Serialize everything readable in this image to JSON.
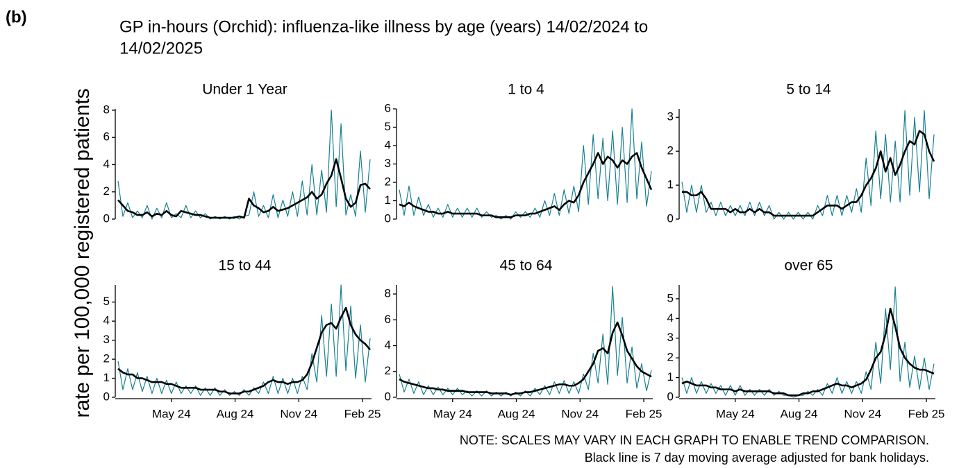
{
  "figure": {
    "label": "(b)",
    "title_lines": [
      "GP in-hours (Orchid): influenza-like illness by age (years) 14/02/2024 to",
      "14/02/2025"
    ],
    "y_axis_label": "rate per 100,000 registered patients",
    "notes": [
      "NOTE: SCALES MAY VARY IN EACH GRAPH TO ENABLE TREND COMPARISON.",
      "Black line is 7 day moving average adjusted for bank holidays."
    ]
  },
  "chart_data": [
    {
      "type": "line",
      "title": "Under 1 Year",
      "xlim": [
        0,
        366
      ],
      "ylim": [
        0,
        8.1
      ],
      "yticks": [
        0,
        2,
        4,
        6,
        8
      ],
      "x": [
        0,
        7,
        14,
        21,
        28,
        35,
        42,
        49,
        56,
        63,
        70,
        77,
        84,
        91,
        98,
        105,
        112,
        119,
        126,
        133,
        140,
        147,
        154,
        161,
        168,
        175,
        182,
        189,
        196,
        203,
        210,
        217,
        224,
        231,
        238,
        245,
        252,
        259,
        266,
        273,
        280,
        287,
        294,
        301,
        308,
        315,
        322,
        329,
        336,
        343,
        350,
        357,
        364
      ],
      "series": [
        {
          "color": "#157f91",
          "width": 1.2,
          "values": [
            2.8,
            0.2,
            1.2,
            0.1,
            0.6,
            0.1,
            1.0,
            0,
            0.8,
            0.1,
            1.2,
            0.1,
            0.4,
            0.1,
            1.0,
            0.1,
            0.6,
            0.1,
            0.4,
            0,
            0.2,
            0,
            0.2,
            0,
            0.2,
            0,
            0.2,
            0.3,
            2.0,
            0.2,
            1.0,
            0.1,
            1.8,
            0.1,
            1.4,
            0.2,
            2.0,
            0.2,
            2.8,
            0.3,
            4.0,
            0.3,
            3.6,
            0.5,
            8.0,
            0.9,
            7.0,
            0.3,
            1.8,
            0.2,
            5.0,
            0.5,
            4.4
          ]
        },
        {
          "color": "#000000",
          "width": 2.6,
          "values": [
            1.4,
            1.0,
            0.6,
            0.5,
            0.3,
            0.3,
            0.5,
            0.2,
            0.4,
            0.3,
            0.6,
            0.3,
            0.2,
            0.6,
            0.5,
            0.4,
            0.3,
            0.3,
            0.2,
            0.1,
            0.1,
            0.1,
            0.1,
            0.1,
            0.1,
            0.2,
            0.1,
            1.5,
            1.0,
            0.8,
            0.5,
            0.6,
            0.9,
            0.6,
            0.7,
            0.8,
            1.0,
            1.2,
            1.4,
            1.6,
            2.0,
            1.5,
            1.8,
            2.6,
            3.2,
            4.4,
            3.0,
            1.5,
            0.9,
            1.2,
            2.5,
            2.6,
            2.2
          ]
        }
      ]
    },
    {
      "type": "line",
      "title": "1 to 4",
      "xlim": [
        0,
        366
      ],
      "ylim": [
        0,
        6
      ],
      "yticks": [
        0,
        1,
        2,
        3,
        4,
        5,
        6
      ],
      "x": [
        0,
        7,
        14,
        21,
        28,
        35,
        42,
        49,
        56,
        63,
        70,
        77,
        84,
        91,
        98,
        105,
        112,
        119,
        126,
        133,
        140,
        147,
        154,
        161,
        168,
        175,
        182,
        189,
        196,
        203,
        210,
        217,
        224,
        231,
        238,
        245,
        252,
        259,
        266,
        273,
        280,
        287,
        294,
        301,
        308,
        315,
        322,
        329,
        336,
        343,
        350,
        357,
        364
      ],
      "series": [
        {
          "color": "#157f91",
          "width": 1.2,
          "values": [
            1.6,
            0.2,
            1.8,
            0.2,
            1.2,
            0.2,
            0.8,
            0.1,
            0.6,
            0.1,
            0.8,
            0.1,
            0.6,
            0.1,
            0.6,
            0.1,
            0.6,
            0.1,
            0.4,
            0.1,
            0.2,
            0,
            0.2,
            0,
            0.4,
            0.1,
            0.4,
            0.1,
            0.6,
            0.1,
            1.0,
            0.2,
            1.4,
            0.2,
            1.6,
            0.3,
            1.8,
            0.4,
            4.0,
            0.8,
            4.6,
            1.1,
            4.4,
            1.0,
            4.8,
            0.8,
            5.0,
            0.9,
            6.0,
            1.1,
            4.2,
            0.7,
            2.6
          ]
        },
        {
          "color": "#000000",
          "width": 2.6,
          "values": [
            0.8,
            0.7,
            0.9,
            0.7,
            0.6,
            0.5,
            0.4,
            0.4,
            0.3,
            0.3,
            0.4,
            0.3,
            0.3,
            0.3,
            0.3,
            0.3,
            0.3,
            0.2,
            0.2,
            0.2,
            0.1,
            0.1,
            0.1,
            0.1,
            0.2,
            0.2,
            0.2,
            0.3,
            0.3,
            0.4,
            0.5,
            0.6,
            0.7,
            0.5,
            0.8,
            1.0,
            0.9,
            1.3,
            2.0,
            2.5,
            3.0,
            3.6,
            3.0,
            3.4,
            3.2,
            2.8,
            3.2,
            3.0,
            3.4,
            3.6,
            2.8,
            2.2,
            1.6
          ]
        }
      ]
    },
    {
      "type": "line",
      "title": "5 to 14",
      "xlim": [
        0,
        366
      ],
      "ylim": [
        0,
        3.25
      ],
      "yticks": [
        0,
        1,
        2,
        3
      ],
      "x": [
        0,
        7,
        14,
        21,
        28,
        35,
        42,
        49,
        56,
        63,
        70,
        77,
        84,
        91,
        98,
        105,
        112,
        119,
        126,
        133,
        140,
        147,
        154,
        161,
        168,
        175,
        182,
        189,
        196,
        203,
        210,
        217,
        224,
        231,
        238,
        245,
        252,
        259,
        266,
        273,
        280,
        287,
        294,
        301,
        308,
        315,
        322,
        329,
        336,
        343,
        350,
        357,
        364
      ],
      "series": [
        {
          "color": "#157f91",
          "width": 1.2,
          "values": [
            1.1,
            0.2,
            1.0,
            0.2,
            1.0,
            0.2,
            0.5,
            0.1,
            0.5,
            0.1,
            0.4,
            0.1,
            0.4,
            0.1,
            0.5,
            0.1,
            0.5,
            0.1,
            0.4,
            0,
            0.2,
            0,
            0.2,
            0,
            0.2,
            0,
            0.2,
            0,
            0.4,
            0.1,
            0.7,
            0.1,
            0.7,
            0.1,
            0.7,
            0.2,
            0.9,
            0.2,
            1.8,
            0.4,
            2.6,
            0.6,
            2.5,
            0.5,
            2.3,
            0.5,
            3.2,
            0.7,
            3.0,
            0.8,
            3.2,
            0.6,
            2.5
          ]
        },
        {
          "color": "#000000",
          "width": 2.6,
          "values": [
            0.8,
            0.8,
            0.7,
            0.7,
            0.8,
            0.6,
            0.3,
            0.3,
            0.3,
            0.3,
            0.2,
            0.3,
            0.2,
            0.2,
            0.3,
            0.2,
            0.3,
            0.2,
            0.2,
            0.1,
            0.1,
            0.1,
            0.1,
            0.1,
            0.1,
            0.1,
            0.1,
            0.1,
            0.2,
            0.3,
            0.4,
            0.4,
            0.4,
            0.3,
            0.4,
            0.5,
            0.5,
            0.7,
            1.0,
            1.2,
            1.5,
            2.0,
            1.4,
            1.8,
            1.3,
            1.6,
            2.0,
            2.3,
            2.2,
            2.6,
            2.5,
            2.0,
            1.7
          ]
        }
      ]
    },
    {
      "type": "line",
      "title": "15 to 44",
      "xlim": [
        0,
        366
      ],
      "ylim": [
        0,
        5.9
      ],
      "yticks": [
        0,
        1,
        2,
        3,
        4,
        5
      ],
      "xticks": [
        {
          "value": 77,
          "label": "May 24"
        },
        {
          "value": 169,
          "label": "Aug 24"
        },
        {
          "value": 261,
          "label": "Nov 24"
        },
        {
          "value": 353,
          "label": "Feb 25"
        }
      ],
      "x": [
        0,
        7,
        14,
        21,
        28,
        35,
        42,
        49,
        56,
        63,
        70,
        77,
        84,
        91,
        98,
        105,
        112,
        119,
        126,
        133,
        140,
        147,
        154,
        161,
        168,
        175,
        182,
        189,
        196,
        203,
        210,
        217,
        224,
        231,
        238,
        245,
        252,
        259,
        266,
        273,
        280,
        287,
        294,
        301,
        308,
        315,
        322,
        329,
        336,
        343,
        350,
        357,
        364
      ],
      "series": [
        {
          "color": "#157f91",
          "width": 1.2,
          "values": [
            1.9,
            0.4,
            1.5,
            0.4,
            1.3,
            0.3,
            1.1,
            0.2,
            1.0,
            0.2,
            0.9,
            0.2,
            0.8,
            0.2,
            0.6,
            0.2,
            0.6,
            0.1,
            0.5,
            0.1,
            0.5,
            0.1,
            0.4,
            0.1,
            0.3,
            0.1,
            0.4,
            0.1,
            0.5,
            0.2,
            0.8,
            0.2,
            1.1,
            0.2,
            1.0,
            0.2,
            1.0,
            0.2,
            1.1,
            0.4,
            2.3,
            0.8,
            4.3,
            1.1,
            4.9,
            1.1,
            5.9,
            1.4,
            4.8,
            1.0,
            3.8,
            0.8,
            3.1
          ]
        },
        {
          "color": "#000000",
          "width": 2.6,
          "values": [
            1.5,
            1.3,
            1.2,
            1.2,
            1.0,
            1.0,
            0.9,
            0.8,
            0.8,
            0.8,
            0.7,
            0.7,
            0.6,
            0.5,
            0.5,
            0.5,
            0.5,
            0.4,
            0.4,
            0.4,
            0.4,
            0.3,
            0.3,
            0.2,
            0.2,
            0.2,
            0.3,
            0.3,
            0.4,
            0.5,
            0.6,
            0.8,
            0.9,
            0.8,
            0.8,
            0.7,
            0.8,
            0.8,
            0.9,
            1.2,
            1.8,
            2.6,
            3.4,
            3.8,
            3.9,
            3.6,
            4.2,
            4.7,
            3.8,
            3.3,
            3.0,
            2.8,
            2.5
          ]
        }
      ]
    },
    {
      "type": "line",
      "title": "45 to 64",
      "xlim": [
        0,
        366
      ],
      "ylim": [
        0,
        8.7
      ],
      "yticks": [
        0,
        2,
        4,
        6,
        8
      ],
      "xticks": [
        {
          "value": 77,
          "label": "May 24"
        },
        {
          "value": 169,
          "label": "Aug 24"
        },
        {
          "value": 261,
          "label": "Nov 24"
        },
        {
          "value": 353,
          "label": "Feb 25"
        }
      ],
      "x": [
        0,
        7,
        14,
        21,
        28,
        35,
        42,
        49,
        56,
        63,
        70,
        77,
        84,
        91,
        98,
        105,
        112,
        119,
        126,
        133,
        140,
        147,
        154,
        161,
        168,
        175,
        182,
        189,
        196,
        203,
        210,
        217,
        224,
        231,
        238,
        245,
        252,
        259,
        266,
        273,
        280,
        287,
        294,
        301,
        308,
        315,
        322,
        329,
        336,
        343,
        350,
        357,
        364
      ],
      "series": [
        {
          "color": "#157f91",
          "width": 1.2,
          "values": [
            1.8,
            0.4,
            1.4,
            0.3,
            1.2,
            0.2,
            0.9,
            0.2,
            0.8,
            0.2,
            0.7,
            0.2,
            0.7,
            0.2,
            0.5,
            0.1,
            0.5,
            0.1,
            0.5,
            0.1,
            0.4,
            0.1,
            0.4,
            0.1,
            0.4,
            0.1,
            0.5,
            0.1,
            0.7,
            0.2,
            0.9,
            0.2,
            1.2,
            0.3,
            1.3,
            0.3,
            1.2,
            0.3,
            1.8,
            0.6,
            3.4,
            1.1,
            4.9,
            1.0,
            8.6,
            1.7,
            6.2,
            1.1,
            3.9,
            0.7,
            2.6,
            0.5,
            2.1
          ]
        },
        {
          "color": "#000000",
          "width": 2.6,
          "values": [
            1.4,
            1.2,
            1.1,
            1.0,
            0.9,
            0.8,
            0.7,
            0.7,
            0.6,
            0.6,
            0.5,
            0.5,
            0.5,
            0.5,
            0.4,
            0.4,
            0.4,
            0.4,
            0.4,
            0.3,
            0.3,
            0.3,
            0.3,
            0.2,
            0.3,
            0.3,
            0.4,
            0.4,
            0.5,
            0.6,
            0.7,
            0.8,
            0.9,
            1.0,
            1.0,
            0.9,
            0.9,
            1.1,
            1.4,
            2.0,
            2.6,
            3.6,
            3.8,
            3.4,
            5.0,
            5.8,
            4.8,
            3.6,
            3.0,
            2.4,
            2.0,
            1.8,
            1.6
          ]
        }
      ]
    },
    {
      "type": "line",
      "title": "over 65",
      "xlim": [
        0,
        366
      ],
      "ylim": [
        0,
        5.7
      ],
      "yticks": [
        0,
        1,
        2,
        3,
        4,
        5
      ],
      "xticks": [
        {
          "value": 77,
          "label": "May 24"
        },
        {
          "value": 169,
          "label": "Aug 24"
        },
        {
          "value": 261,
          "label": "Nov 24"
        },
        {
          "value": 353,
          "label": "Feb 25"
        }
      ],
      "x": [
        0,
        7,
        14,
        21,
        28,
        35,
        42,
        49,
        56,
        63,
        70,
        77,
        84,
        91,
        98,
        105,
        112,
        119,
        126,
        133,
        140,
        147,
        154,
        161,
        168,
        175,
        182,
        189,
        196,
        203,
        210,
        217,
        224,
        231,
        238,
        245,
        252,
        259,
        266,
        273,
        280,
        287,
        294,
        301,
        308,
        315,
        322,
        329,
        336,
        343,
        350,
        357,
        364
      ],
      "series": [
        {
          "color": "#157f91",
          "width": 1.2,
          "values": [
            1.0,
            0.2,
            1.0,
            0.2,
            0.8,
            0.2,
            0.7,
            0.2,
            0.6,
            0.1,
            0.6,
            0.1,
            0.6,
            0.1,
            0.4,
            0.1,
            0.4,
            0.1,
            0.4,
            0.1,
            0.3,
            0.1,
            0.1,
            0,
            0.1,
            0.1,
            0.3,
            0.1,
            0.4,
            0.1,
            0.7,
            0.2,
            1.0,
            0.2,
            0.8,
            0.2,
            0.8,
            0.2,
            1.3,
            0.4,
            2.8,
            0.7,
            4.5,
            1.4,
            5.6,
            0.8,
            2.8,
            0.5,
            2.1,
            0.4,
            2.0,
            0.4,
            1.7
          ]
        },
        {
          "color": "#000000",
          "width": 2.6,
          "values": [
            0.7,
            0.8,
            0.7,
            0.6,
            0.6,
            0.6,
            0.5,
            0.5,
            0.4,
            0.4,
            0.4,
            0.3,
            0.4,
            0.3,
            0.3,
            0.3,
            0.3,
            0.3,
            0.3,
            0.2,
            0.2,
            0.2,
            0.1,
            0.1,
            0.1,
            0.2,
            0.2,
            0.3,
            0.3,
            0.4,
            0.5,
            0.6,
            0.7,
            0.6,
            0.6,
            0.5,
            0.6,
            0.7,
            0.9,
            1.4,
            2.0,
            2.3,
            3.2,
            4.5,
            3.6,
            2.5,
            2.0,
            1.7,
            1.5,
            1.4,
            1.4,
            1.3,
            1.2
          ]
        }
      ]
    }
  ]
}
